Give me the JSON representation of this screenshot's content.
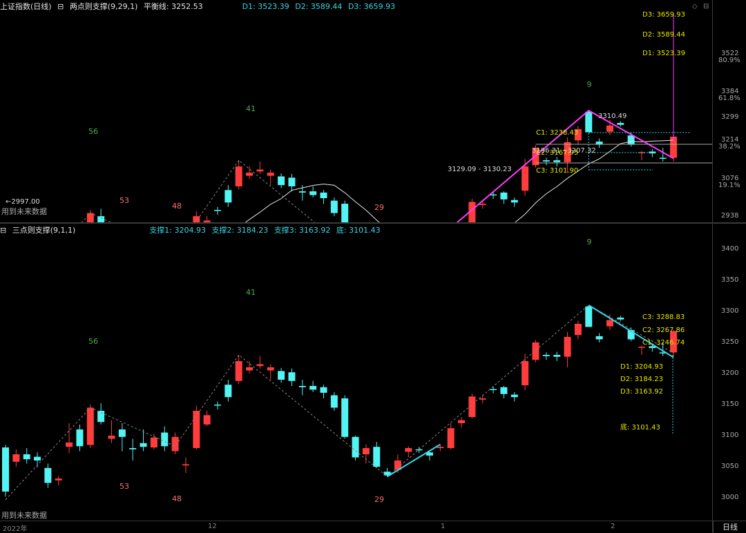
{
  "top_header": {
    "index_name": "上证指数(日线)",
    "indicator": "两点则支撑(9,29,1)",
    "balance_label": "平衡线: 3252.53",
    "d1": "D1: 3523.39",
    "d2": "D2: 3589.44",
    "d3": "D3: 3659.93"
  },
  "bottom_header": {
    "indicator": "三点则支撑(9,1,1)",
    "support1": "支撑1: 3204.93",
    "support2": "支撑2: 3184.23",
    "support3": "支撑3: 3163.92",
    "bottom": "底: 3101.43"
  },
  "top_axis": {
    "ticks": [
      "3522",
      "3384",
      "3299",
      "3214",
      "3076",
      "2938"
    ],
    "percents": [
      "80.9%",
      "61.8%",
      "38.2%",
      "19.1%"
    ]
  },
  "bottom_axis": {
    "ticks": [
      "3400",
      "3350",
      "3300",
      "3250",
      "3200",
      "3150",
      "3100",
      "3050",
      "3000"
    ]
  },
  "x_axis": {
    "labels": [
      "2022年",
      "12",
      "1",
      "2"
    ],
    "period": "日线"
  },
  "top_annotations": {
    "d3_right": "D3: 3659.93",
    "d2_right": "D2: 3589.44",
    "d1_right": "D1: 3523.39",
    "peak_label": "3310.49",
    "c1": "C1: 3238.43",
    "c2": "C2: 3167.95",
    "c3": "C3: 3101.90",
    "mid_label": "3196.31 - 3207.32",
    "range_label": "3129.09 - 3130.23",
    "low_label": "2997.00",
    "future_text": "用到未来数据",
    "wave_labels": [
      "56",
      "53",
      "41",
      "48",
      "29",
      "9"
    ]
  },
  "bottom_annotations": {
    "c3": "C3: 3288.83",
    "c2": "C2: 3267.86",
    "c1": "C1: 3246.74",
    "d1": "D1: 3204.93",
    "d2": "D2: 3184.23",
    "d3": "D3: 3163.92",
    "bottom": "底: 3101.43",
    "future_text": "用到未来数据",
    "wave_labels": [
      "56",
      "53",
      "41",
      "48",
      "29",
      "9"
    ]
  },
  "colors": {
    "up": "#ff3d3d",
    "down": "#53f4f4",
    "magenta": "#ff3cff",
    "cyan_line": "#35d8ee",
    "ma": "#e8e8e8",
    "yellow": "#e8e800"
  },
  "candles": [
    [
      3081,
      3010,
      3085,
      3002
    ],
    [
      3058,
      3070,
      3078,
      3050
    ],
    [
      3070,
      3062,
      3080,
      3055
    ],
    [
      3066,
      3060,
      3073,
      3049
    ],
    [
      3048,
      3024,
      3055,
      3016
    ],
    [
      3028,
      3031,
      3035,
      3020
    ],
    [
      3082,
      3089,
      3120,
      3072
    ],
    [
      3110,
      3083,
      3118,
      3075
    ],
    [
      3085,
      3145,
      3150,
      3080
    ],
    [
      3140,
      3122,
      3152,
      3118
    ],
    [
      3095,
      3100,
      3125,
      3088
    ],
    [
      3110,
      3098,
      3120,
      3075
    ],
    [
      3080,
      3078,
      3095,
      3060
    ],
    [
      3088,
      3082,
      3110,
      3075
    ],
    [
      3081,
      3097,
      3103,
      3078
    ],
    [
      3105,
      3083,
      3115,
      3075
    ],
    [
      3075,
      3098,
      3105,
      3070
    ],
    [
      3052,
      3054,
      3065,
      3040
    ],
    [
      3080,
      3140,
      3148,
      3078
    ],
    [
      3118,
      3133,
      3140,
      3115
    ],
    [
      3150,
      3149,
      3155,
      3142
    ],
    [
      3182,
      3162,
      3190,
      3155
    ],
    [
      3188,
      3220,
      3230,
      3183
    ],
    [
      3205,
      3210,
      3220,
      3200
    ],
    [
      3212,
      3215,
      3228,
      3208
    ],
    [
      3205,
      3210,
      3215,
      3190
    ],
    [
      3204,
      3190,
      3209,
      3185
    ],
    [
      3202,
      3188,
      3208,
      3180
    ],
    [
      3180,
      3178,
      3190,
      3165
    ],
    [
      3180,
      3174,
      3188,
      3170
    ],
    [
      3178,
      3169,
      3182,
      3160
    ],
    [
      3165,
      3145,
      3170,
      3140
    ],
    [
      3160,
      3098,
      3165,
      3095
    ],
    [
      3098,
      3065,
      3100,
      3060
    ],
    [
      3070,
      3080,
      3086,
      3055
    ],
    [
      3082,
      3050,
      3090,
      3048
    ],
    [
      3042,
      3036,
      3048,
      3034
    ],
    [
      3045,
      3060,
      3070,
      3040
    ],
    [
      3074,
      3080,
      3083,
      3065
    ],
    [
      3078,
      3077,
      3082,
      3072
    ],
    [
      3073,
      3068,
      3077,
      3060
    ],
    [
      3080,
      3082,
      3086,
      3075
    ],
    [
      3080,
      3112,
      3120,
      3078
    ],
    [
      3120,
      3125,
      3130,
      3113
    ],
    [
      3130,
      3163,
      3168,
      3128
    ],
    [
      3158,
      3160,
      3165,
      3152
    ],
    [
      3175,
      3174,
      3179,
      3168
    ],
    [
      3178,
      3167,
      3180,
      3160
    ],
    [
      3166,
      3162,
      3170,
      3155
    ],
    [
      3181,
      3220,
      3232,
      3173
    ],
    [
      3222,
      3250,
      3254,
      3218
    ],
    [
      3230,
      3228,
      3234,
      3222
    ],
    [
      3230,
      3227,
      3235,
      3220
    ],
    [
      3227,
      3259,
      3267,
      3210
    ],
    [
      3262,
      3280,
      3285,
      3255
    ],
    [
      3308,
      3275,
      3310,
      3275
    ],
    [
      3260,
      3255,
      3265,
      3250
    ],
    [
      3276,
      3286,
      3295,
      3270
    ],
    [
      3290,
      3287,
      3293,
      3284
    ],
    [
      3270,
      3255,
      3274,
      3252
    ],
    [
      3242,
      3243,
      3245,
      3230
    ],
    [
      3244,
      3241,
      3248,
      3235
    ],
    [
      3234,
      3233,
      3250,
      3228
    ],
    [
      3234,
      3268,
      3270,
      3228
    ]
  ]
}
